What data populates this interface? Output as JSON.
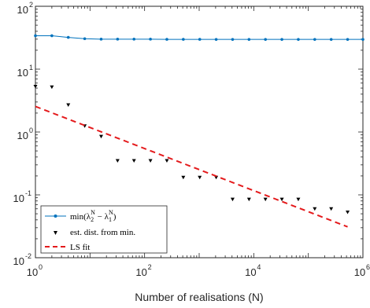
{
  "chart_data": {
    "type": "scatter",
    "xscale": "log",
    "yscale": "log",
    "xlim": [
      1,
      1000000
    ],
    "ylim": [
      0.01,
      100
    ],
    "grid": false,
    "box": true,
    "legend_position": "bottom-left",
    "xlabel": "Number of realisations (N)",
    "ylabel": "",
    "title": "",
    "x_ticks": [
      {
        "base": "10",
        "exp": "0",
        "value": 1
      },
      {
        "base": "10",
        "exp": "2",
        "value": 100
      },
      {
        "base": "10",
        "exp": "4",
        "value": 10000
      },
      {
        "base": "10",
        "exp": "6",
        "value": 1000000
      }
    ],
    "y_ticks": [
      {
        "base": "10",
        "exp": "-2",
        "value": 0.01
      },
      {
        "base": "10",
        "exp": "-1",
        "value": 0.1
      },
      {
        "base": "10",
        "exp": "0",
        "value": 1
      },
      {
        "base": "10",
        "exp": "1",
        "value": 10
      },
      {
        "base": "10",
        "exp": "2",
        "value": 100
      }
    ],
    "series": [
      {
        "name": "min(λ2N − λ1N)",
        "kind": "line-markers",
        "color": "#0072BD",
        "x": [
          1,
          2,
          4,
          8,
          16,
          32,
          64,
          128,
          256,
          512,
          1024,
          2048,
          4096,
          8192,
          16384,
          32768,
          65536,
          131072,
          262144,
          524288,
          1000000
        ],
        "y": [
          34,
          34,
          32,
          30.5,
          30,
          30,
          30,
          30,
          29.8,
          29.8,
          29.8,
          29.7,
          29.7,
          29.7,
          29.7,
          29.7,
          29.7,
          29.7,
          29.7,
          29.7,
          29.7
        ]
      },
      {
        "name": "est. dist. from min.",
        "kind": "markers",
        "color": "#000000",
        "x": [
          1,
          2,
          4,
          8,
          16,
          32,
          64,
          128,
          256,
          512,
          1024,
          2048,
          4096,
          8192,
          16384,
          32768,
          65536,
          131072,
          262144,
          524288
        ],
        "y": [
          5.3,
          5.2,
          2.7,
          1.25,
          0.85,
          0.35,
          0.35,
          0.35,
          0.35,
          0.19,
          0.19,
          0.19,
          0.085,
          0.085,
          0.085,
          0.085,
          0.085,
          0.06,
          0.06,
          0.053
        ]
      },
      {
        "name": "LS fit",
        "kind": "dashed-line",
        "color": "#E41A1C",
        "x": [
          1,
          524288
        ],
        "y": [
          2.55,
          0.031
        ]
      }
    ],
    "legend": {
      "line1_prefix": "min(λ",
      "line1_sub_a": "2",
      "line1_sup_a": "N",
      "line1_mid": " − λ",
      "line1_sub_b": "1",
      "line1_sup_b": "N",
      "line1_suffix": ")",
      "line2": "est. dist. from min.",
      "line3": "LS fit"
    }
  }
}
